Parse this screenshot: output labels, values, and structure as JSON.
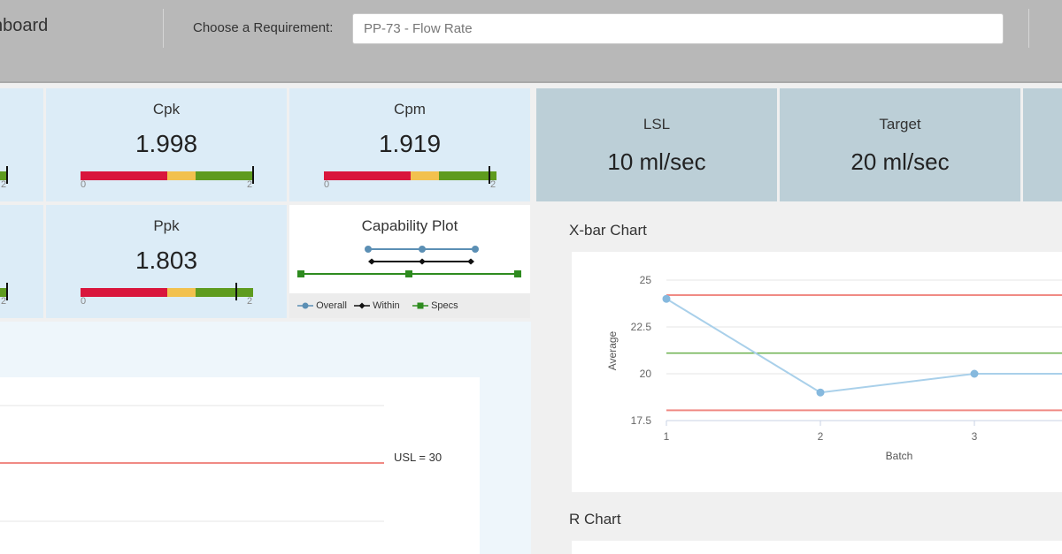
{
  "header": {
    "title": "nboard",
    "requirement_label": "Choose a Requirement:",
    "requirement_value": "PP-73 - Flow Rate"
  },
  "tiles": [
    {
      "label": "Cpk",
      "value": "1.998",
      "gauge_min": "0",
      "gauge_max": "2",
      "gauge_value": 1.998
    },
    {
      "label": "Cpm",
      "value": "1.919",
      "gauge_min": "0",
      "gauge_max": "2",
      "gauge_value": 1.919
    },
    {
      "label": "Ppk",
      "value": "1.803",
      "gauge_min": "0",
      "gauge_max": "2",
      "gauge_value": 1.803
    }
  ],
  "partial_tiles": [
    {
      "gauge_max": "2"
    },
    {
      "gauge_max": "2"
    }
  ],
  "gauge_colors": {
    "red": "#d9163c",
    "yellow": "#f2c14e",
    "green": "#5e9b1e"
  },
  "gauge_breaks": [
    0,
    1,
    1.33,
    2
  ],
  "specs": [
    {
      "label": "LSL",
      "value": "10 ml/sec"
    },
    {
      "label": "Target",
      "value": "20 ml/sec"
    }
  ],
  "capability_plot": {
    "title": "Capability Plot",
    "legend": [
      {
        "name": "Overall",
        "color": "#5b8fb4"
      },
      {
        "name": "Within",
        "color": "#111111"
      },
      {
        "name": "Specs",
        "color": "#2e8b1f"
      }
    ]
  },
  "left_chart": {
    "usl_label": "USL = 30",
    "usl_color": "#f08a84"
  },
  "xbar_chart": {
    "title": "X-bar Chart",
    "xlabel": "Batch",
    "ylabel": "Average",
    "yticks": [
      "25",
      "22.5",
      "20",
      "17.5"
    ],
    "xticks": [
      "1",
      "2",
      "3"
    ],
    "chart_data": {
      "type": "line",
      "x": [
        1,
        2,
        3,
        4
      ],
      "values": [
        24,
        19,
        20,
        20
      ],
      "ylim": [
        17.5,
        25
      ],
      "ucl": 24.2,
      "center": 21.1,
      "lcl": 18.05,
      "line_color": "#a9d0ea",
      "limit_color": "#f08a84",
      "center_color": "#6ab04c"
    }
  },
  "r_chart": {
    "title": "R Chart"
  }
}
